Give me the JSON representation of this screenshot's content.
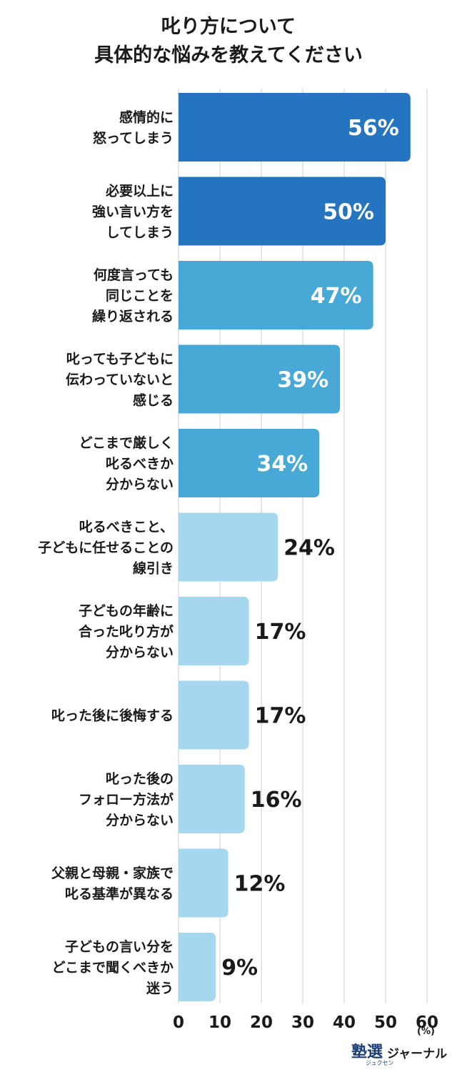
{
  "title": {
    "line1": "叱り方について",
    "line2": "具体的な悩みを教えてください"
  },
  "unit": "(%)",
  "logo": {
    "mark": "塾選",
    "sub": "ジュクセン",
    "text": "ジャーナル"
  },
  "colors": {
    "dark_blue": "#2474c0",
    "mid_blue": "#48a8d6",
    "light_blue": "#a5d8ef",
    "grid": "#cccccc",
    "value_on_bar": "#ffffff",
    "value_outside": "#1a1a1a"
  },
  "chart_data": {
    "type": "bar",
    "orientation": "horizontal",
    "categories": [
      [
        "感情的に",
        "怒ってしまう"
      ],
      [
        "必要以上に",
        "強い言い方を",
        "してしまう"
      ],
      [
        "何度言っても",
        "同じことを",
        "繰り返される"
      ],
      [
        "叱っても子どもに",
        "伝わっていないと",
        "感じる"
      ],
      [
        "どこまで厳しく",
        "叱るべきか",
        "分からない"
      ],
      [
        "叱るべきこと、",
        "子どもに任せることの",
        "線引き"
      ],
      [
        "子どもの年齢に",
        "合った叱り方が",
        "分からない"
      ],
      [
        "叱った後に後悔する"
      ],
      [
        "叱った後の",
        "フォロー方法が",
        "分からない"
      ],
      [
        "父親と母親・家族で",
        "叱る基準が異なる"
      ],
      [
        "子どもの言い分を",
        "どこまで聞くべきか",
        "迷う"
      ]
    ],
    "values": [
      56,
      50,
      47,
      39,
      34,
      24,
      17,
      17,
      16,
      12,
      9
    ],
    "value_labels": [
      "56%",
      "50%",
      "47%",
      "39%",
      "34%",
      "24%",
      "17%",
      "17%",
      "16%",
      "12%",
      "9%"
    ],
    "bar_colors": [
      "#2474c0",
      "#2474c0",
      "#48a8d6",
      "#48a8d6",
      "#48a8d6",
      "#a5d8ef",
      "#a5d8ef",
      "#a5d8ef",
      "#a5d8ef",
      "#a5d8ef",
      "#a5d8ef"
    ],
    "xlim": [
      0,
      60
    ],
    "xticks": [
      0,
      10,
      20,
      30,
      40,
      50,
      60
    ],
    "x_unit": "(%)",
    "grid": "vertical"
  }
}
